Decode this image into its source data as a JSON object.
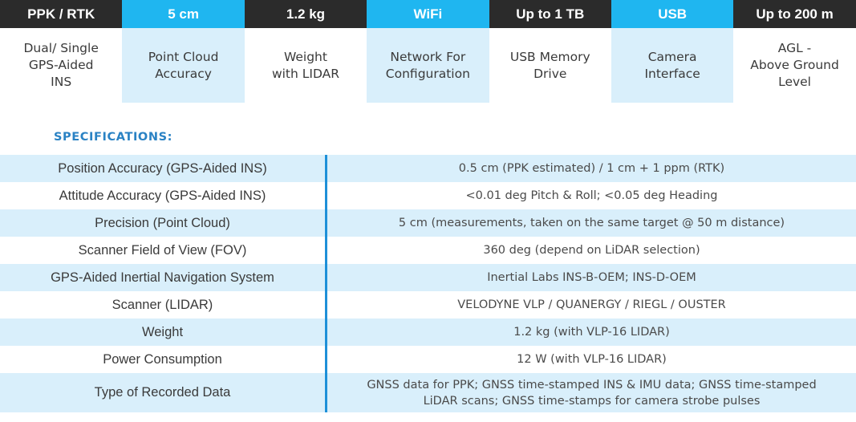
{
  "features": [
    {
      "head": "PPK / RTK",
      "desc": "Dual/ Single\nGPS-Aided\nINS",
      "style": "dark"
    },
    {
      "head": "5 cm",
      "desc": "Point Cloud\nAccuracy",
      "style": "blue"
    },
    {
      "head": "1.2 kg",
      "desc": "Weight\nwith LIDAR",
      "style": "dark"
    },
    {
      "head": "WiFi",
      "desc": "Network For\nConfiguration",
      "style": "blue"
    },
    {
      "head": "Up to 1 TB",
      "desc": "USB Memory\nDrive",
      "style": "dark"
    },
    {
      "head": "USB",
      "desc": "Camera\nInterface",
      "style": "blue"
    },
    {
      "head": "Up to 200 m",
      "desc": "AGL -\nAbove Ground\nLevel",
      "style": "dark"
    }
  ],
  "specifications": {
    "heading": "SPECIFICATIONS:",
    "rows": [
      {
        "label": "Position Accuracy (GPS-Aided INS)",
        "value": "0.5 cm (PPK estimated) / 1 cm + 1 ppm (RTK)"
      },
      {
        "label": "Attitude Accuracy (GPS-Aided INS)",
        "value": "<0.01 deg Pitch & Roll; <0.05 deg Heading"
      },
      {
        "label": "Precision (Point Cloud)",
        "value": "5 cm (measurements, taken on the same target @ 50 m distance)"
      },
      {
        "label": "Scanner Field of View (FOV)",
        "value": "360 deg (depend on LiDAR selection)"
      },
      {
        "label": "GPS-Aided Inertial Navigation System",
        "value": "Inertial Labs INS-B-OEM; INS-D-OEM"
      },
      {
        "label": "Scanner (LIDAR)",
        "value": "VELODYNE VLP / QUANERGY / RIEGL / OUSTER"
      },
      {
        "label": "Weight",
        "value": "1.2 kg (with VLP-16 LIDAR)"
      },
      {
        "label": "Power Consumption",
        "value": "12 W (with VLP-16 LIDAR)"
      },
      {
        "label": "Type of Recorded Data",
        "value": "GNSS data for PPK; GNSS time-stamped INS & IMU data; GNSS time-stamped LiDAR scans; GNSS time-stamps for camera strobe pulses"
      }
    ]
  },
  "colors": {
    "dark_header": "#2b2b2b",
    "accent_blue": "#1fb6f0",
    "light_blue_fill": "#d9effb",
    "divider_blue": "#1e90d8",
    "heading_blue": "#2a82c4"
  }
}
